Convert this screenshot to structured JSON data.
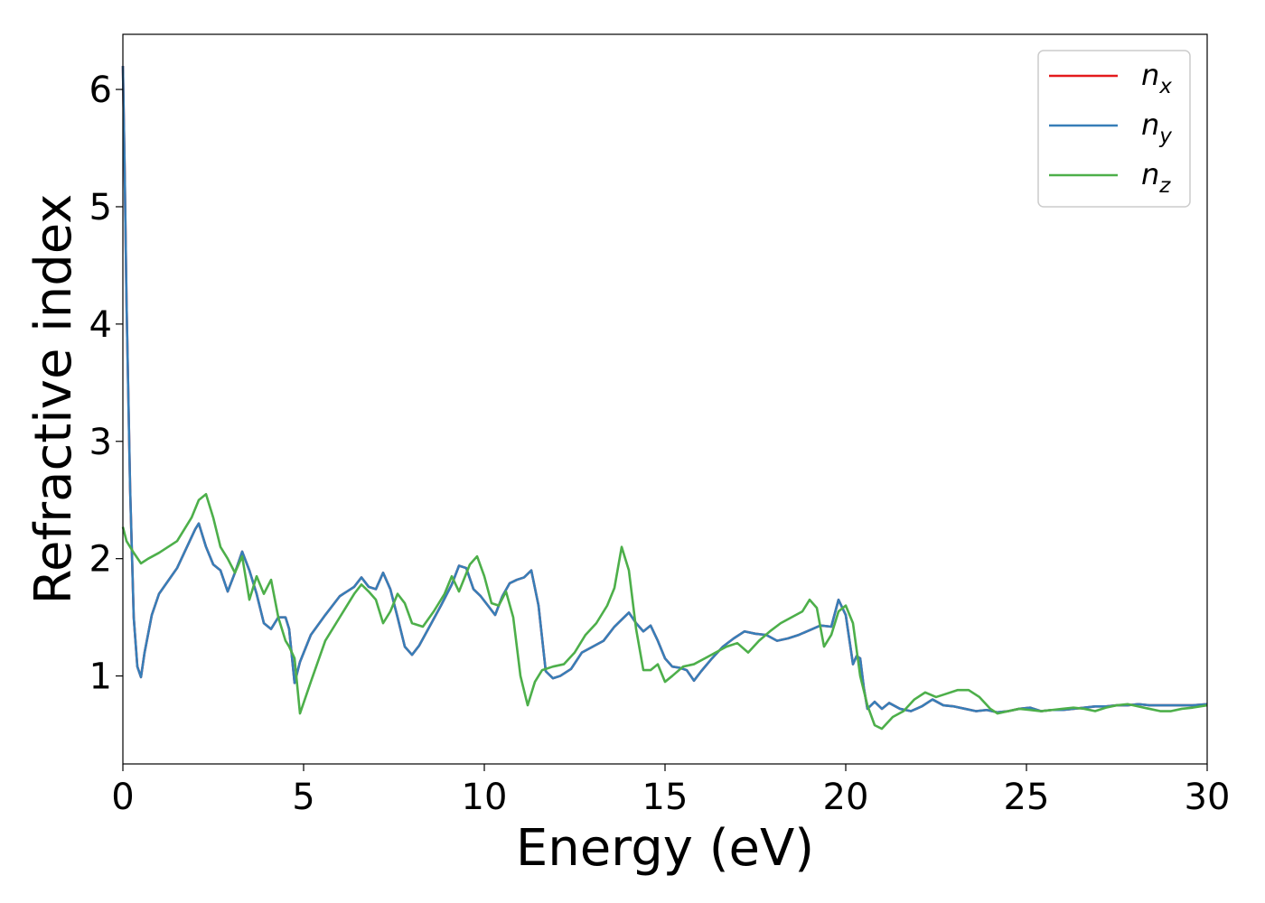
{
  "chart_data": {
    "type": "line",
    "xlabel": "Energy (eV)",
    "ylabel": "Refractive index",
    "xlim": [
      0,
      30
    ],
    "ylim": [
      0.25,
      6.47
    ],
    "xticks": [
      0,
      5,
      10,
      15,
      20,
      25,
      30
    ],
    "yticks": [
      1,
      2,
      3,
      4,
      5,
      6
    ],
    "grid": false,
    "legend_position": "top-right",
    "series": [
      {
        "name": "n_x",
        "label_base": "n",
        "label_sub": "x",
        "color": "#e41a1c",
        "x": [
          0,
          0.05,
          0.1,
          0.2,
          0.3,
          0.4,
          0.5,
          0.6,
          0.8,
          1.0,
          1.5,
          2.0,
          2.1,
          2.3,
          2.5,
          2.7,
          2.9,
          3.1,
          3.3,
          3.5,
          3.7,
          3.9,
          4.1,
          4.3,
          4.5,
          4.6,
          4.75,
          4.9,
          5.2,
          5.6,
          6.0,
          6.4,
          6.6,
          6.8,
          7.0,
          7.2,
          7.4,
          7.6,
          7.8,
          8.0,
          8.2,
          8.5,
          8.8,
          9.1,
          9.3,
          9.5,
          9.7,
          9.9,
          10.1,
          10.3,
          10.5,
          10.7,
          10.9,
          11.1,
          11.3,
          11.5,
          11.7,
          11.9,
          12.1,
          12.4,
          12.7,
          13.0,
          13.3,
          13.6,
          13.8,
          14.0,
          14.2,
          14.4,
          14.6,
          14.8,
          15.0,
          15.2,
          15.4,
          15.6,
          15.8,
          16.0,
          16.3,
          16.6,
          16.9,
          17.2,
          17.5,
          17.8,
          18.1,
          18.4,
          18.7,
          19.0,
          19.3,
          19.6,
          19.8,
          20.0,
          20.2,
          20.3,
          20.4,
          20.5,
          20.6,
          20.8,
          21.0,
          21.2,
          21.5,
          21.8,
          22.1,
          22.4,
          22.7,
          23.0,
          23.3,
          23.6,
          23.9,
          24.2,
          24.5,
          24.8,
          25.1,
          25.4,
          25.7,
          26.0,
          26.3,
          26.6,
          26.9,
          27.2,
          27.5,
          27.8,
          28.1,
          28.4,
          28.7,
          29.0,
          29.3,
          29.6,
          30.0
        ],
        "y": [
          6.2,
          5.3,
          4.2,
          2.6,
          1.5,
          1.08,
          0.99,
          1.2,
          1.52,
          1.7,
          1.92,
          2.25,
          2.3,
          2.1,
          1.95,
          1.9,
          1.72,
          1.88,
          2.06,
          1.9,
          1.7,
          1.45,
          1.4,
          1.5,
          1.5,
          1.4,
          0.94,
          1.12,
          1.35,
          1.52,
          1.68,
          1.76,
          1.84,
          1.76,
          1.74,
          1.88,
          1.74,
          1.5,
          1.25,
          1.18,
          1.26,
          1.43,
          1.6,
          1.78,
          1.94,
          1.92,
          1.74,
          1.68,
          1.6,
          1.52,
          1.68,
          1.79,
          1.82,
          1.84,
          1.9,
          1.6,
          1.04,
          0.98,
          1.0,
          1.06,
          1.2,
          1.25,
          1.3,
          1.42,
          1.48,
          1.54,
          1.45,
          1.38,
          1.43,
          1.3,
          1.15,
          1.08,
          1.07,
          1.05,
          0.96,
          1.04,
          1.15,
          1.25,
          1.32,
          1.38,
          1.36,
          1.35,
          1.3,
          1.32,
          1.35,
          1.39,
          1.43,
          1.42,
          1.65,
          1.52,
          1.1,
          1.17,
          1.15,
          0.9,
          0.72,
          0.78,
          0.72,
          0.77,
          0.72,
          0.7,
          0.74,
          0.8,
          0.75,
          0.74,
          0.72,
          0.7,
          0.71,
          0.69,
          0.7,
          0.72,
          0.73,
          0.7,
          0.71,
          0.71,
          0.72,
          0.73,
          0.74,
          0.74,
          0.75,
          0.75,
          0.76,
          0.75,
          0.75,
          0.75,
          0.75,
          0.75,
          0.76
        ]
      },
      {
        "name": "n_y",
        "label_base": "n",
        "label_sub": "y",
        "color": "#377eb8",
        "x": [
          0,
          0.05,
          0.1,
          0.2,
          0.3,
          0.4,
          0.5,
          0.6,
          0.8,
          1.0,
          1.5,
          2.0,
          2.1,
          2.3,
          2.5,
          2.7,
          2.9,
          3.1,
          3.3,
          3.5,
          3.7,
          3.9,
          4.1,
          4.3,
          4.5,
          4.6,
          4.75,
          4.9,
          5.2,
          5.6,
          6.0,
          6.4,
          6.6,
          6.8,
          7.0,
          7.2,
          7.4,
          7.6,
          7.8,
          8.0,
          8.2,
          8.5,
          8.8,
          9.1,
          9.3,
          9.5,
          9.7,
          9.9,
          10.1,
          10.3,
          10.5,
          10.7,
          10.9,
          11.1,
          11.3,
          11.5,
          11.7,
          11.9,
          12.1,
          12.4,
          12.7,
          13.0,
          13.3,
          13.6,
          13.8,
          14.0,
          14.2,
          14.4,
          14.6,
          14.8,
          15.0,
          15.2,
          15.4,
          15.6,
          15.8,
          16.0,
          16.3,
          16.6,
          16.9,
          17.2,
          17.5,
          17.8,
          18.1,
          18.4,
          18.7,
          19.0,
          19.3,
          19.6,
          19.8,
          20.0,
          20.2,
          20.3,
          20.4,
          20.5,
          20.6,
          20.8,
          21.0,
          21.2,
          21.5,
          21.8,
          22.1,
          22.4,
          22.7,
          23.0,
          23.3,
          23.6,
          23.9,
          24.2,
          24.5,
          24.8,
          25.1,
          25.4,
          25.7,
          26.0,
          26.3,
          26.6,
          26.9,
          27.2,
          27.5,
          27.8,
          28.1,
          28.4,
          28.7,
          29.0,
          29.3,
          29.6,
          30.0
        ],
        "y": [
          6.2,
          5.3,
          4.2,
          2.6,
          1.5,
          1.08,
          0.99,
          1.2,
          1.52,
          1.7,
          1.92,
          2.25,
          2.3,
          2.1,
          1.95,
          1.9,
          1.72,
          1.88,
          2.06,
          1.9,
          1.7,
          1.45,
          1.4,
          1.5,
          1.5,
          1.4,
          0.94,
          1.12,
          1.35,
          1.52,
          1.68,
          1.76,
          1.84,
          1.76,
          1.74,
          1.88,
          1.74,
          1.5,
          1.25,
          1.18,
          1.26,
          1.43,
          1.6,
          1.78,
          1.94,
          1.92,
          1.74,
          1.68,
          1.6,
          1.52,
          1.68,
          1.79,
          1.82,
          1.84,
          1.9,
          1.6,
          1.04,
          0.98,
          1.0,
          1.06,
          1.2,
          1.25,
          1.3,
          1.42,
          1.48,
          1.54,
          1.45,
          1.38,
          1.43,
          1.3,
          1.15,
          1.08,
          1.07,
          1.05,
          0.96,
          1.04,
          1.15,
          1.25,
          1.32,
          1.38,
          1.36,
          1.35,
          1.3,
          1.32,
          1.35,
          1.39,
          1.43,
          1.42,
          1.65,
          1.52,
          1.1,
          1.17,
          1.15,
          0.9,
          0.72,
          0.78,
          0.72,
          0.77,
          0.72,
          0.7,
          0.74,
          0.8,
          0.75,
          0.74,
          0.72,
          0.7,
          0.71,
          0.69,
          0.7,
          0.72,
          0.73,
          0.7,
          0.71,
          0.71,
          0.72,
          0.73,
          0.74,
          0.74,
          0.75,
          0.75,
          0.76,
          0.75,
          0.75,
          0.75,
          0.75,
          0.75,
          0.76
        ]
      },
      {
        "name": "n_z",
        "label_base": "n",
        "label_sub": "z",
        "color": "#4daf4a",
        "x": [
          0,
          0.1,
          0.3,
          0.5,
          0.7,
          1.0,
          1.5,
          1.9,
          2.1,
          2.3,
          2.5,
          2.7,
          2.9,
          3.1,
          3.3,
          3.5,
          3.7,
          3.9,
          4.1,
          4.3,
          4.5,
          4.6,
          4.75,
          4.9,
          5.2,
          5.6,
          6.0,
          6.4,
          6.6,
          6.8,
          7.0,
          7.2,
          7.4,
          7.6,
          7.8,
          8.0,
          8.3,
          8.6,
          8.9,
          9.1,
          9.3,
          9.6,
          9.8,
          10.0,
          10.2,
          10.4,
          10.6,
          10.8,
          11.0,
          11.2,
          11.4,
          11.6,
          11.9,
          12.2,
          12.5,
          12.8,
          13.1,
          13.4,
          13.6,
          13.8,
          14.0,
          14.2,
          14.4,
          14.6,
          14.8,
          15.0,
          15.2,
          15.5,
          15.8,
          16.1,
          16.4,
          16.7,
          17.0,
          17.3,
          17.6,
          17.9,
          18.2,
          18.5,
          18.8,
          19.0,
          19.2,
          19.4,
          19.6,
          19.8,
          20.0,
          20.2,
          20.4,
          20.6,
          20.8,
          21.0,
          21.3,
          21.6,
          21.9,
          22.2,
          22.5,
          22.8,
          23.1,
          23.4,
          23.7,
          24.0,
          24.2,
          24.5,
          24.8,
          25.1,
          25.4,
          25.7,
          26.0,
          26.3,
          26.6,
          26.9,
          27.2,
          27.5,
          27.8,
          28.1,
          28.4,
          28.7,
          29.0,
          29.3,
          29.6,
          30.0
        ],
        "y": [
          2.27,
          2.15,
          2.05,
          1.96,
          2.0,
          2.05,
          2.15,
          2.35,
          2.5,
          2.55,
          2.35,
          2.1,
          2.0,
          1.88,
          2.02,
          1.65,
          1.85,
          1.7,
          1.82,
          1.5,
          1.3,
          1.25,
          1.15,
          0.68,
          0.95,
          1.3,
          1.5,
          1.7,
          1.78,
          1.72,
          1.65,
          1.45,
          1.55,
          1.7,
          1.62,
          1.45,
          1.42,
          1.55,
          1.7,
          1.85,
          1.72,
          1.95,
          2.02,
          1.85,
          1.62,
          1.6,
          1.72,
          1.5,
          1.0,
          0.75,
          0.95,
          1.05,
          1.08,
          1.1,
          1.2,
          1.35,
          1.45,
          1.6,
          1.75,
          2.1,
          1.9,
          1.4,
          1.05,
          1.05,
          1.1,
          0.95,
          1.0,
          1.08,
          1.1,
          1.15,
          1.2,
          1.25,
          1.28,
          1.2,
          1.3,
          1.38,
          1.45,
          1.5,
          1.55,
          1.65,
          1.58,
          1.25,
          1.35,
          1.55,
          1.6,
          1.45,
          1.0,
          0.75,
          0.58,
          0.55,
          0.65,
          0.7,
          0.8,
          0.86,
          0.82,
          0.85,
          0.88,
          0.88,
          0.82,
          0.72,
          0.68,
          0.7,
          0.72,
          0.71,
          0.7,
          0.71,
          0.72,
          0.73,
          0.72,
          0.7,
          0.73,
          0.75,
          0.76,
          0.74,
          0.72,
          0.7,
          0.7,
          0.72,
          0.73,
          0.75
        ]
      }
    ]
  }
}
